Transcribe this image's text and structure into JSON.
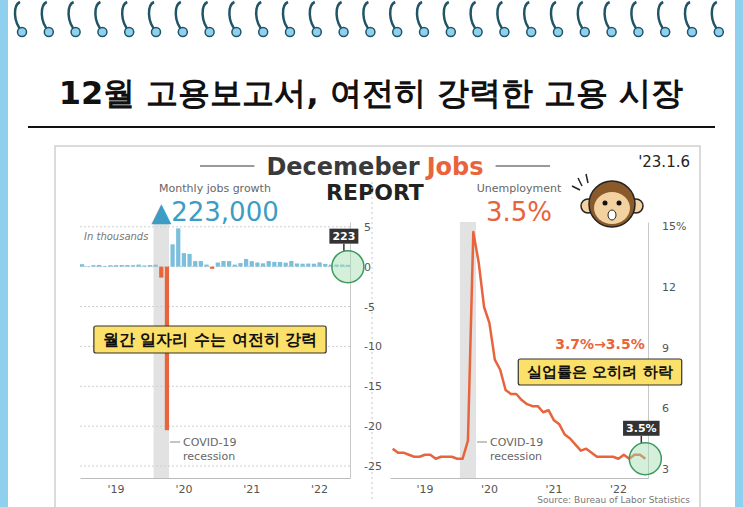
{
  "page": {
    "title": "12월 고용보고서, 여전히 강력한 고용 시장",
    "report_title": "Decemeber",
    "report_title_highlight": "Jobs",
    "report_subtitle": "REPORT",
    "date": "'23.1.6"
  },
  "chart_data": [
    {
      "type": "bar",
      "title": "Monthly jobs growth",
      "subtitle": "▲223,000",
      "y_label": "In thousands",
      "categories": [
        null,
        null,
        null,
        null,
        null,
        null,
        "'19",
        null,
        null,
        null,
        null,
        null,
        null,
        null,
        null,
        null,
        null,
        null,
        "'20",
        null,
        null,
        null,
        null,
        null,
        null,
        null,
        null,
        null,
        null,
        null,
        "'21",
        null,
        null,
        null,
        null,
        null,
        null,
        null,
        null,
        null,
        null,
        null,
        "'22",
        null,
        null,
        null,
        null,
        null
      ],
      "values": [
        0.31,
        0.06,
        0.19,
        0.22,
        0.09,
        0.18,
        0.19,
        0.21,
        0.2,
        0.19,
        0.26,
        0.15,
        0.21,
        0.25,
        -1.37,
        -20.5,
        2.8,
        4.8,
        1.7,
        1.6,
        0.7,
        0.7,
        0.26,
        -0.27,
        0.52,
        0.71,
        0.7,
        0.26,
        0.45,
        0.96,
        0.69,
        0.52,
        0.42,
        0.7,
        0.6,
        0.59,
        0.5,
        0.71,
        0.4,
        0.37,
        0.39,
        0.37,
        0.54,
        0.35,
        0.26,
        0.26,
        0.26,
        0.223
      ],
      "colors": [
        "#7cbfdd",
        "#7cbfdd",
        "#7cbfdd",
        "#7cbfdd",
        "#7cbfdd",
        "#7cbfdd",
        "#7cbfdd",
        "#7cbfdd",
        "#7cbfdd",
        "#7cbfdd",
        "#7cbfdd",
        "#7cbfdd",
        "#7cbfdd",
        "#7cbfdd",
        "#e8643c",
        "#e8643c",
        "#7cbfdd",
        "#7cbfdd",
        "#7cbfdd",
        "#7cbfdd",
        "#7cbfdd",
        "#7cbfdd",
        "#7cbfdd",
        "#e8643c",
        "#7cbfdd",
        "#7cbfdd",
        "#7cbfdd",
        "#7cbfdd",
        "#7cbfdd",
        "#7cbfdd",
        "#7cbfdd",
        "#7cbfdd",
        "#7cbfdd",
        "#7cbfdd",
        "#7cbfdd",
        "#7cbfdd",
        "#7cbfdd",
        "#7cbfdd",
        "#7cbfdd",
        "#7cbfdd",
        "#7cbfdd",
        "#7cbfdd",
        "#7cbfdd",
        "#7cbfdd",
        "#7cbfdd",
        "#7cbfdd",
        "#7cbfdd",
        "#7cbfdd"
      ],
      "ylim": [
        -26.5,
        5.6
      ],
      "yticks": [
        5,
        0,
        -5,
        -10,
        -15,
        -20,
        -25
      ],
      "grid": true,
      "shade": {
        "label": "COVID-19 recession",
        "from": 13,
        "to": 15
      },
      "callout": "223",
      "note": "월간 일자리 수는 여전히 강력"
    },
    {
      "type": "line",
      "title": "Unemployment",
      "subtitle": "3.5%",
      "categories": [
        null,
        null,
        null,
        null,
        null,
        null,
        "'19",
        null,
        null,
        null,
        null,
        null,
        null,
        null,
        null,
        null,
        null,
        null,
        "'20",
        null,
        null,
        null,
        null,
        null,
        null,
        null,
        null,
        null,
        null,
        null,
        "'21",
        null,
        null,
        null,
        null,
        null,
        null,
        null,
        null,
        null,
        null,
        null,
        "'22",
        null,
        null,
        null,
        null,
        null
      ],
      "values": [
        4.0,
        3.8,
        3.8,
        3.7,
        3.6,
        3.6,
        3.7,
        3.7,
        3.5,
        3.6,
        3.6,
        3.6,
        3.5,
        3.5,
        4.4,
        14.7,
        13.2,
        11.0,
        10.2,
        8.4,
        7.9,
        6.9,
        6.7,
        6.7,
        6.4,
        6.2,
        6.1,
        6.1,
        5.8,
        5.9,
        5.4,
        5.2,
        4.7,
        4.5,
        4.2,
        3.9,
        4.0,
        3.8,
        3.6,
        3.6,
        3.6,
        3.6,
        3.5,
        3.7,
        3.5,
        3.7,
        3.7,
        3.5
      ],
      "color": "#e8643c",
      "ylim": [
        2.55,
        15.2
      ],
      "yticks": [
        3,
        6,
        9,
        12,
        {
          "value": 15,
          "label": "15%"
        }
      ],
      "grid": false,
      "shade": {
        "label": "COVID-19 recession",
        "from": 13,
        "to": 15
      },
      "callout": "3.5%",
      "change": "3.7%→3.5%",
      "note": "실업률은 오히려 하락",
      "source": "Source: Bureau of Labor Statistics"
    }
  ]
}
